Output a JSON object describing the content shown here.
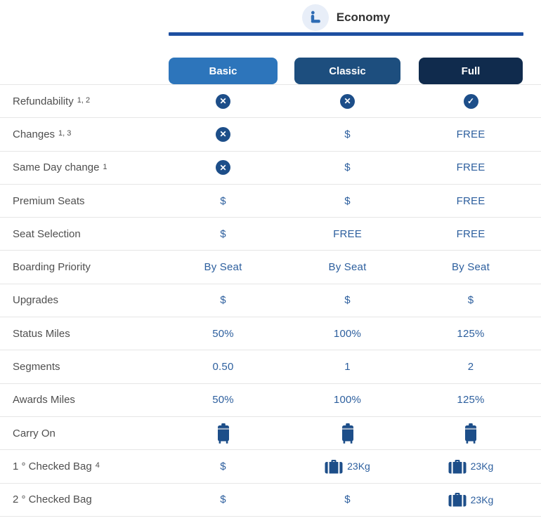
{
  "colors": {
    "accent_line": "#1d4fa1",
    "deep_blue": "#1d4e89",
    "value_blue": "#2d5f9e",
    "icon_circle_bg": "#e8eef8",
    "seat_icon_blue": "#2d6bb4",
    "label_gray": "#4f4f4f"
  },
  "header": {
    "cabin_label": "Economy",
    "cabin_icon": "economy-seat-icon"
  },
  "columns": [
    {
      "label": "Basic",
      "color": "#2d75bb"
    },
    {
      "label": "Classic",
      "color": "#1d4e7e"
    },
    {
      "label": "Full",
      "color": "#102b4d"
    }
  ],
  "table": {
    "rows": [
      {
        "label": "Refundability",
        "sup": "1, 2",
        "cells": [
          {
            "type": "icon-x"
          },
          {
            "type": "icon-x"
          },
          {
            "type": "icon-check"
          }
        ]
      },
      {
        "label": "Changes",
        "sup": "1, 3",
        "cells": [
          {
            "type": "icon-x"
          },
          {
            "type": "text",
            "text": "$"
          },
          {
            "type": "text",
            "text": "FREE"
          }
        ]
      },
      {
        "label": "Same Day change",
        "sup": "1",
        "cells": [
          {
            "type": "icon-x"
          },
          {
            "type": "text",
            "text": "$"
          },
          {
            "type": "text",
            "text": "FREE"
          }
        ]
      },
      {
        "label": "Premium Seats",
        "sup": "",
        "cells": [
          {
            "type": "text",
            "text": "$"
          },
          {
            "type": "text",
            "text": "$"
          },
          {
            "type": "text",
            "text": "FREE"
          }
        ]
      },
      {
        "label": "Seat Selection",
        "sup": "",
        "cells": [
          {
            "type": "text",
            "text": "$"
          },
          {
            "type": "text",
            "text": "FREE"
          },
          {
            "type": "text",
            "text": "FREE"
          }
        ]
      },
      {
        "label": "Boarding Priority",
        "sup": "",
        "cells": [
          {
            "type": "text",
            "text": "By Seat"
          },
          {
            "type": "text",
            "text": "By Seat"
          },
          {
            "type": "text",
            "text": "By Seat"
          }
        ]
      },
      {
        "label": "Upgrades",
        "sup": "",
        "cells": [
          {
            "type": "text",
            "text": "$"
          },
          {
            "type": "text",
            "text": "$"
          },
          {
            "type": "text",
            "text": "$"
          }
        ]
      },
      {
        "label": "Status Miles",
        "sup": "",
        "cells": [
          {
            "type": "text",
            "text": "50%"
          },
          {
            "type": "text",
            "text": "100%"
          },
          {
            "type": "text",
            "text": "125%"
          }
        ]
      },
      {
        "label": "Segments",
        "sup": "",
        "cells": [
          {
            "type": "text",
            "text": "0.50"
          },
          {
            "type": "text",
            "text": "1"
          },
          {
            "type": "text",
            "text": "2"
          }
        ]
      },
      {
        "label": "Awards Miles",
        "sup": "",
        "cells": [
          {
            "type": "text",
            "text": "50%"
          },
          {
            "type": "text",
            "text": "100%"
          },
          {
            "type": "text",
            "text": "125%"
          }
        ]
      },
      {
        "label": "Carry On",
        "sup": "",
        "cells": [
          {
            "type": "icon-carryon"
          },
          {
            "type": "icon-carryon"
          },
          {
            "type": "icon-carryon"
          }
        ]
      },
      {
        "label": "1 ° Checked Bag",
        "sup": "4",
        "cells": [
          {
            "type": "text",
            "text": "$"
          },
          {
            "type": "icon-bag",
            "text": "23Kg"
          },
          {
            "type": "icon-bag",
            "text": "23Kg"
          }
        ]
      },
      {
        "label": "2 ° Checked Bag",
        "sup": "",
        "cells": [
          {
            "type": "text",
            "text": "$"
          },
          {
            "type": "text",
            "text": "$"
          },
          {
            "type": "icon-bag",
            "text": "23Kg"
          }
        ]
      }
    ]
  }
}
